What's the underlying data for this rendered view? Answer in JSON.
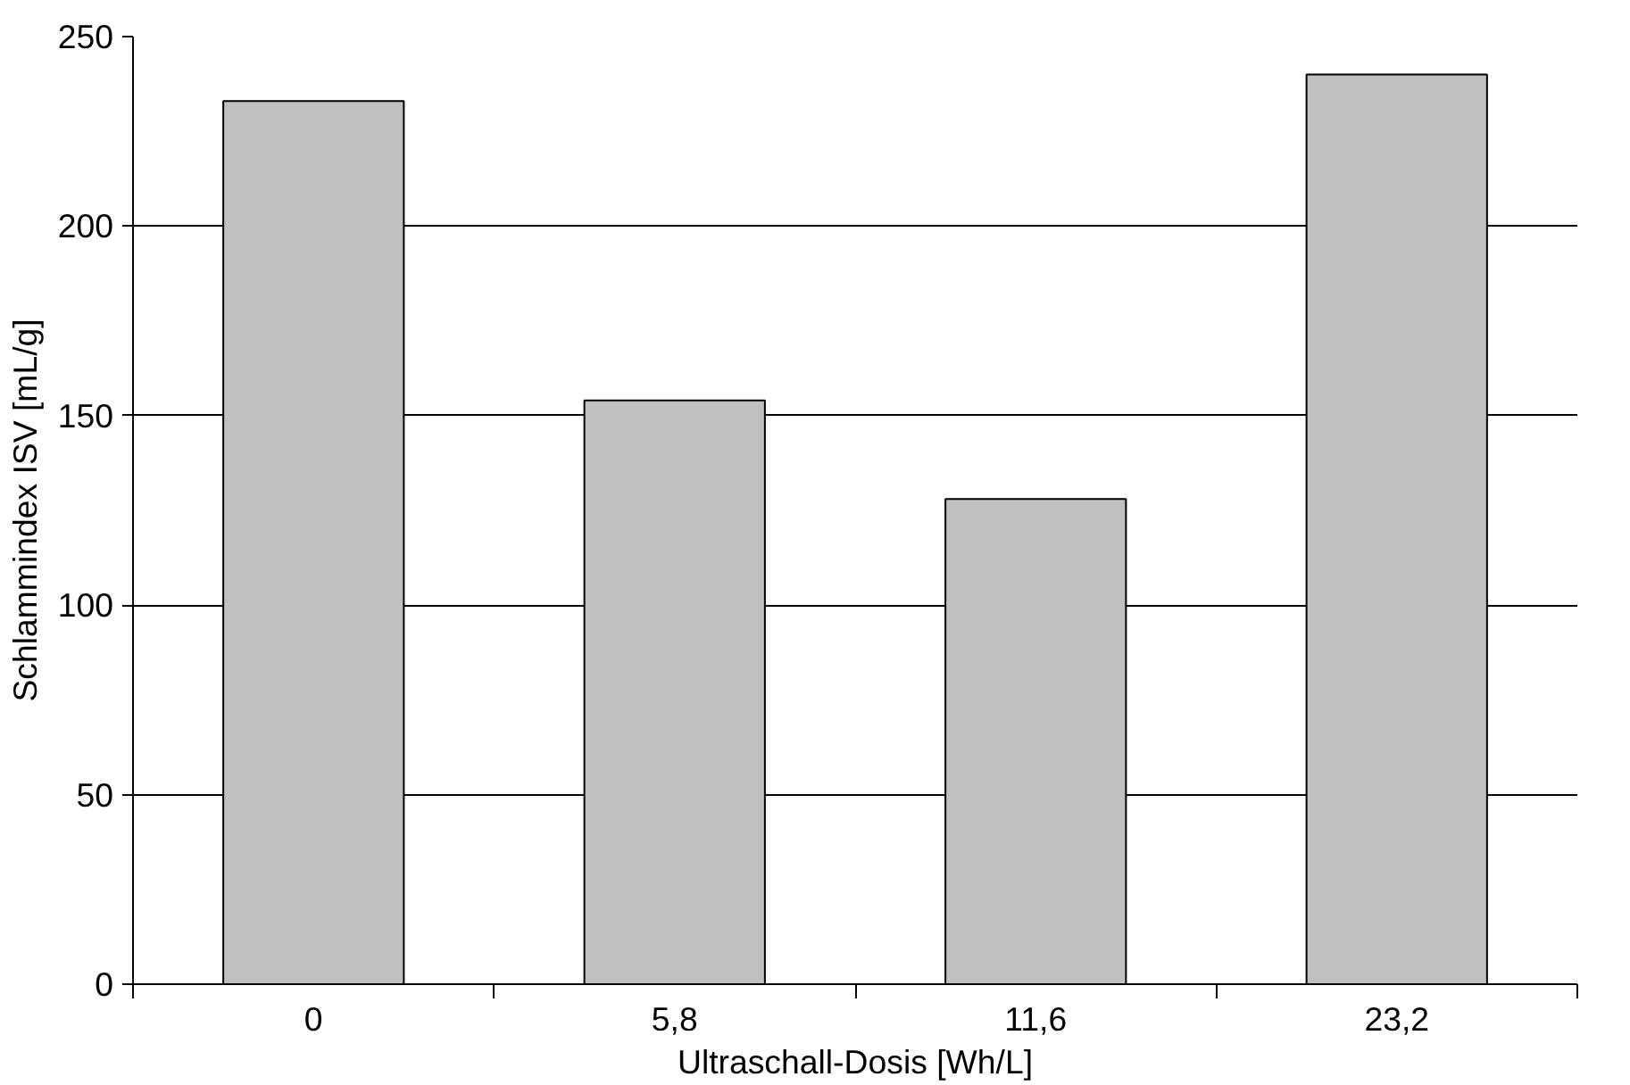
{
  "chart_data": {
    "type": "bar",
    "xlabel": "Ultraschall-Dosis [Wh/L]",
    "ylabel": "Schlammindex ISV [mL/g]",
    "categories": [
      "0",
      "5,8",
      "11,6",
      "23,2"
    ],
    "values": [
      233,
      154,
      128,
      240
    ],
    "color": "#c0c0c0",
    "ylim": [
      0,
      250
    ],
    "yticks": [
      0,
      50,
      100,
      150,
      200,
      250
    ],
    "grid": "y"
  }
}
